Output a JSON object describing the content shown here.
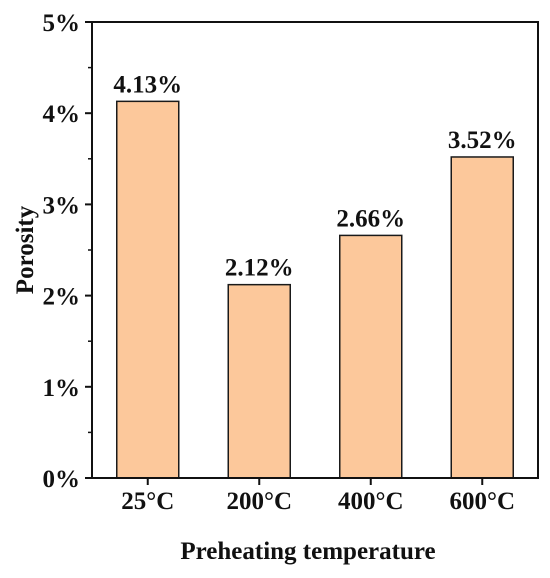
{
  "chart_data": {
    "type": "bar",
    "categories": [
      "25°C",
      "200°C",
      "400°C",
      "600°C"
    ],
    "values": [
      4.13,
      2.12,
      2.66,
      3.52
    ],
    "data_labels": [
      "4.13%",
      "2.12%",
      "2.66%",
      "3.52%"
    ],
    "title": "",
    "xlabel": "Preheating temperature",
    "ylabel": "Porosity",
    "ylim": [
      0,
      5
    ],
    "yticks": [
      0,
      1,
      2,
      3,
      4,
      5
    ],
    "ytick_labels": [
      "0%",
      "1%",
      "2%",
      "3%",
      "4%",
      "5%"
    ],
    "grid": false,
    "legend": "none",
    "bar_color": "#FCC89B",
    "bar_edge_color": "#1a1a1a"
  }
}
